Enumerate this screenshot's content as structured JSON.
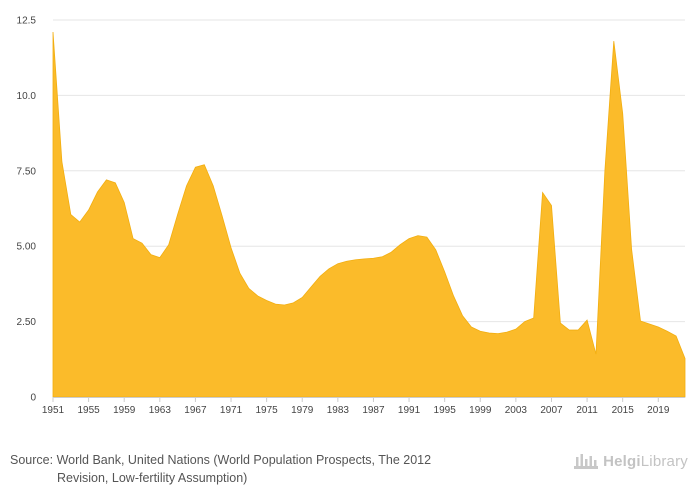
{
  "chart_data": {
    "type": "area",
    "title": "",
    "xlabel": "",
    "ylabel": "",
    "color": "#FBBB2A",
    "ylim": [
      0,
      12.5
    ],
    "y_ticks": [
      "0",
      "2.50",
      "5.00",
      "7.50",
      "10.0",
      "12.5"
    ],
    "x_tick_labels": [
      "1951",
      "1955",
      "1959",
      "1963",
      "1967",
      "1971",
      "1975",
      "1979",
      "1983",
      "1987",
      "1991",
      "1995",
      "1999",
      "2003",
      "2007",
      "2011",
      "2015",
      "2019"
    ],
    "grid": true,
    "x": [
      1951,
      1952,
      1953,
      1954,
      1955,
      1956,
      1957,
      1958,
      1959,
      1960,
      1961,
      1962,
      1963,
      1964,
      1965,
      1966,
      1967,
      1968,
      1969,
      1970,
      1971,
      1972,
      1973,
      1974,
      1975,
      1976,
      1977,
      1978,
      1979,
      1980,
      1981,
      1982,
      1983,
      1984,
      1985,
      1986,
      1987,
      1988,
      1989,
      1990,
      1991,
      1992,
      1993,
      1994,
      1995,
      1996,
      1997,
      1998,
      1999,
      2000,
      2001,
      2002,
      2003,
      2004,
      2005,
      2006,
      2007,
      2008,
      2009,
      2010,
      2011,
      2012,
      2013,
      2014,
      2015,
      2016,
      2017,
      2018,
      2019,
      2020,
      2021,
      2022
    ],
    "values": [
      12.1,
      7.8,
      6.05,
      5.8,
      6.2,
      6.8,
      7.2,
      7.1,
      6.45,
      5.25,
      5.1,
      4.72,
      4.62,
      5.05,
      6.05,
      7.0,
      7.62,
      7.7,
      7.0,
      6.0,
      4.95,
      4.1,
      3.6,
      3.35,
      3.2,
      3.08,
      3.05,
      3.12,
      3.3,
      3.65,
      4.0,
      4.25,
      4.42,
      4.5,
      4.55,
      4.58,
      4.6,
      4.65,
      4.8,
      5.05,
      5.25,
      5.35,
      5.3,
      4.88,
      4.15,
      3.35,
      2.7,
      2.32,
      2.18,
      2.12,
      2.1,
      2.15,
      2.25,
      2.5,
      2.62,
      6.78,
      6.35,
      2.45,
      2.22,
      2.22,
      2.55,
      1.42,
      7.5,
      11.8,
      9.4,
      4.9,
      2.52,
      2.42,
      2.32,
      2.18,
      2.02,
      1.28
    ]
  },
  "source": {
    "label": "Source:",
    "line1": "World Bank, United Nations (World Population Prospects, The 2012",
    "line2": "Revision, Low-fertility Assumption)"
  },
  "brand": {
    "part1": "Helgi",
    "part2": "Library",
    "icon": "helgi-library-logo-icon",
    "color": "#c3c3c3"
  }
}
